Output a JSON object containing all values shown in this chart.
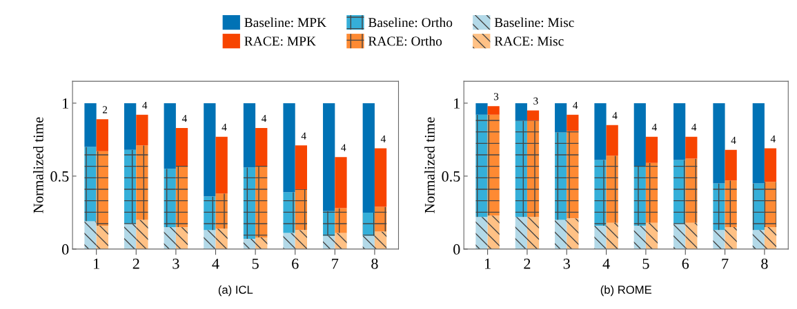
{
  "chart_data": [
    {
      "type": "bar",
      "stacked": true,
      "xlabel": "(a) ICL",
      "ylabel": "Normalized time",
      "x": [
        0.85,
        1.15,
        1.85,
        2.15,
        2.85,
        3.15,
        3.85,
        4.15,
        4.85,
        5.15,
        5.85,
        6.15,
        6.85,
        7.15,
        7.85,
        8.15
      ],
      "xlim": [
        0.4,
        8.6
      ],
      "xticks": [
        1,
        2,
        3,
        4,
        5,
        6,
        7,
        8
      ],
      "ylim": [
        0,
        1.15
      ],
      "yticks": [
        0,
        0.5,
        1
      ],
      "legend": "top",
      "series": [
        {
          "name": "Baseline: Misc",
          "color": "#b3d9e8",
          "values": [
            0.19,
            null,
            0.17,
            null,
            0.15,
            null,
            0.13,
            null,
            0.07,
            null,
            0.11,
            null,
            0.09,
            null,
            0.09,
            null
          ]
        },
        {
          "name": "Baseline: Ortho",
          "color": "#35afd9",
          "values": [
            0.51,
            null,
            0.51,
            null,
            0.4,
            null,
            0.23,
            null,
            0.49,
            null,
            0.28,
            null,
            0.17,
            null,
            0.16,
            null
          ]
        },
        {
          "name": "Baseline: MPK",
          "color": "#0072b5",
          "values": [
            0.3,
            null,
            0.32,
            null,
            0.45,
            null,
            0.64,
            null,
            0.44,
            null,
            0.61,
            null,
            0.74,
            null,
            0.75,
            null
          ]
        },
        {
          "name": "RACE: Misc",
          "color": "#ffc185",
          "values": [
            null,
            0.16,
            null,
            0.2,
            null,
            0.15,
            null,
            0.14,
            null,
            0.08,
            null,
            0.13,
            null,
            0.11,
            null,
            0.12
          ]
        },
        {
          "name": "RACE: Ortho",
          "color": "#fe8a33",
          "values": [
            null,
            0.51,
            null,
            0.51,
            null,
            0.42,
            null,
            0.24,
            null,
            0.49,
            null,
            0.28,
            null,
            0.17,
            null,
            0.17
          ]
        },
        {
          "name": "RACE: MPK",
          "color": "#f74400",
          "values": [
            null,
            0.22,
            null,
            0.21,
            null,
            0.26,
            null,
            0.39,
            null,
            0.26,
            null,
            0.3,
            null,
            0.35,
            null,
            0.4
          ]
        }
      ],
      "annotations": [
        {
          "text": "2",
          "x": 1.15,
          "y": 0.89
        },
        {
          "text": "4",
          "x": 2.15,
          "y": 0.92
        },
        {
          "text": "4",
          "x": 3.15,
          "y": 0.83
        },
        {
          "text": "4",
          "x": 4.15,
          "y": 0.77
        },
        {
          "text": "4",
          "x": 5.15,
          "y": 0.83
        },
        {
          "text": "4",
          "x": 6.15,
          "y": 0.71
        },
        {
          "text": "4",
          "x": 7.15,
          "y": 0.63
        },
        {
          "text": "4",
          "x": 8.15,
          "y": 0.69
        }
      ]
    },
    {
      "type": "bar",
      "stacked": true,
      "xlabel": "(b) ROME",
      "ylabel": "Normalized time",
      "x": [
        0.85,
        1.15,
        1.85,
        2.15,
        2.85,
        3.15,
        3.85,
        4.15,
        4.85,
        5.15,
        5.85,
        6.15,
        6.85,
        7.15,
        7.85,
        8.15
      ],
      "xlim": [
        0.4,
        8.6
      ],
      "xticks": [
        1,
        2,
        3,
        4,
        5,
        6,
        7,
        8
      ],
      "ylim": [
        0,
        1.15
      ],
      "yticks": [
        0,
        0.5,
        1
      ],
      "series": [
        {
          "color": "#b3d9e8",
          "values": [
            0.22,
            null,
            0.22,
            null,
            0.2,
            null,
            0.16,
            null,
            0.16,
            null,
            0.17,
            null,
            0.13,
            null,
            0.13,
            null
          ]
        },
        {
          "color": "#35afd9",
          "values": [
            0.7,
            null,
            0.66,
            null,
            0.6,
            null,
            0.45,
            null,
            0.41,
            null,
            0.44,
            null,
            0.32,
            null,
            0.32,
            null
          ]
        },
        {
          "color": "#0072b5",
          "values": [
            0.08,
            null,
            0.12,
            null,
            0.2,
            null,
            0.39,
            null,
            0.43,
            null,
            0.39,
            null,
            0.55,
            null,
            0.55,
            null
          ]
        },
        {
          "color": "#ffc185",
          "values": [
            null,
            0.23,
            null,
            0.22,
            null,
            0.21,
            null,
            0.18,
            null,
            0.18,
            null,
            0.18,
            null,
            0.15,
            null,
            0.15
          ]
        },
        {
          "color": "#fe8a33",
          "values": [
            null,
            0.69,
            null,
            0.66,
            null,
            0.6,
            null,
            0.46,
            null,
            0.41,
            null,
            0.44,
            null,
            0.32,
            null,
            0.31
          ]
        },
        {
          "color": "#f74400",
          "values": [
            null,
            0.06,
            null,
            0.07,
            null,
            0.11,
            null,
            0.21,
            null,
            0.18,
            null,
            0.15,
            null,
            0.21,
            null,
            0.23
          ]
        }
      ],
      "annotations": [
        {
          "text": "3",
          "x": 1.15,
          "y": 0.98
        },
        {
          "text": "3",
          "x": 2.15,
          "y": 0.95
        },
        {
          "text": "4",
          "x": 3.15,
          "y": 0.92
        },
        {
          "text": "4",
          "x": 4.15,
          "y": 0.85
        },
        {
          "text": "4",
          "x": 5.15,
          "y": 0.77
        },
        {
          "text": "4",
          "x": 6.15,
          "y": 0.77
        },
        {
          "text": "4",
          "x": 7.15,
          "y": 0.68
        },
        {
          "text": "4",
          "x": 8.15,
          "y": 0.69
        }
      ]
    }
  ]
}
